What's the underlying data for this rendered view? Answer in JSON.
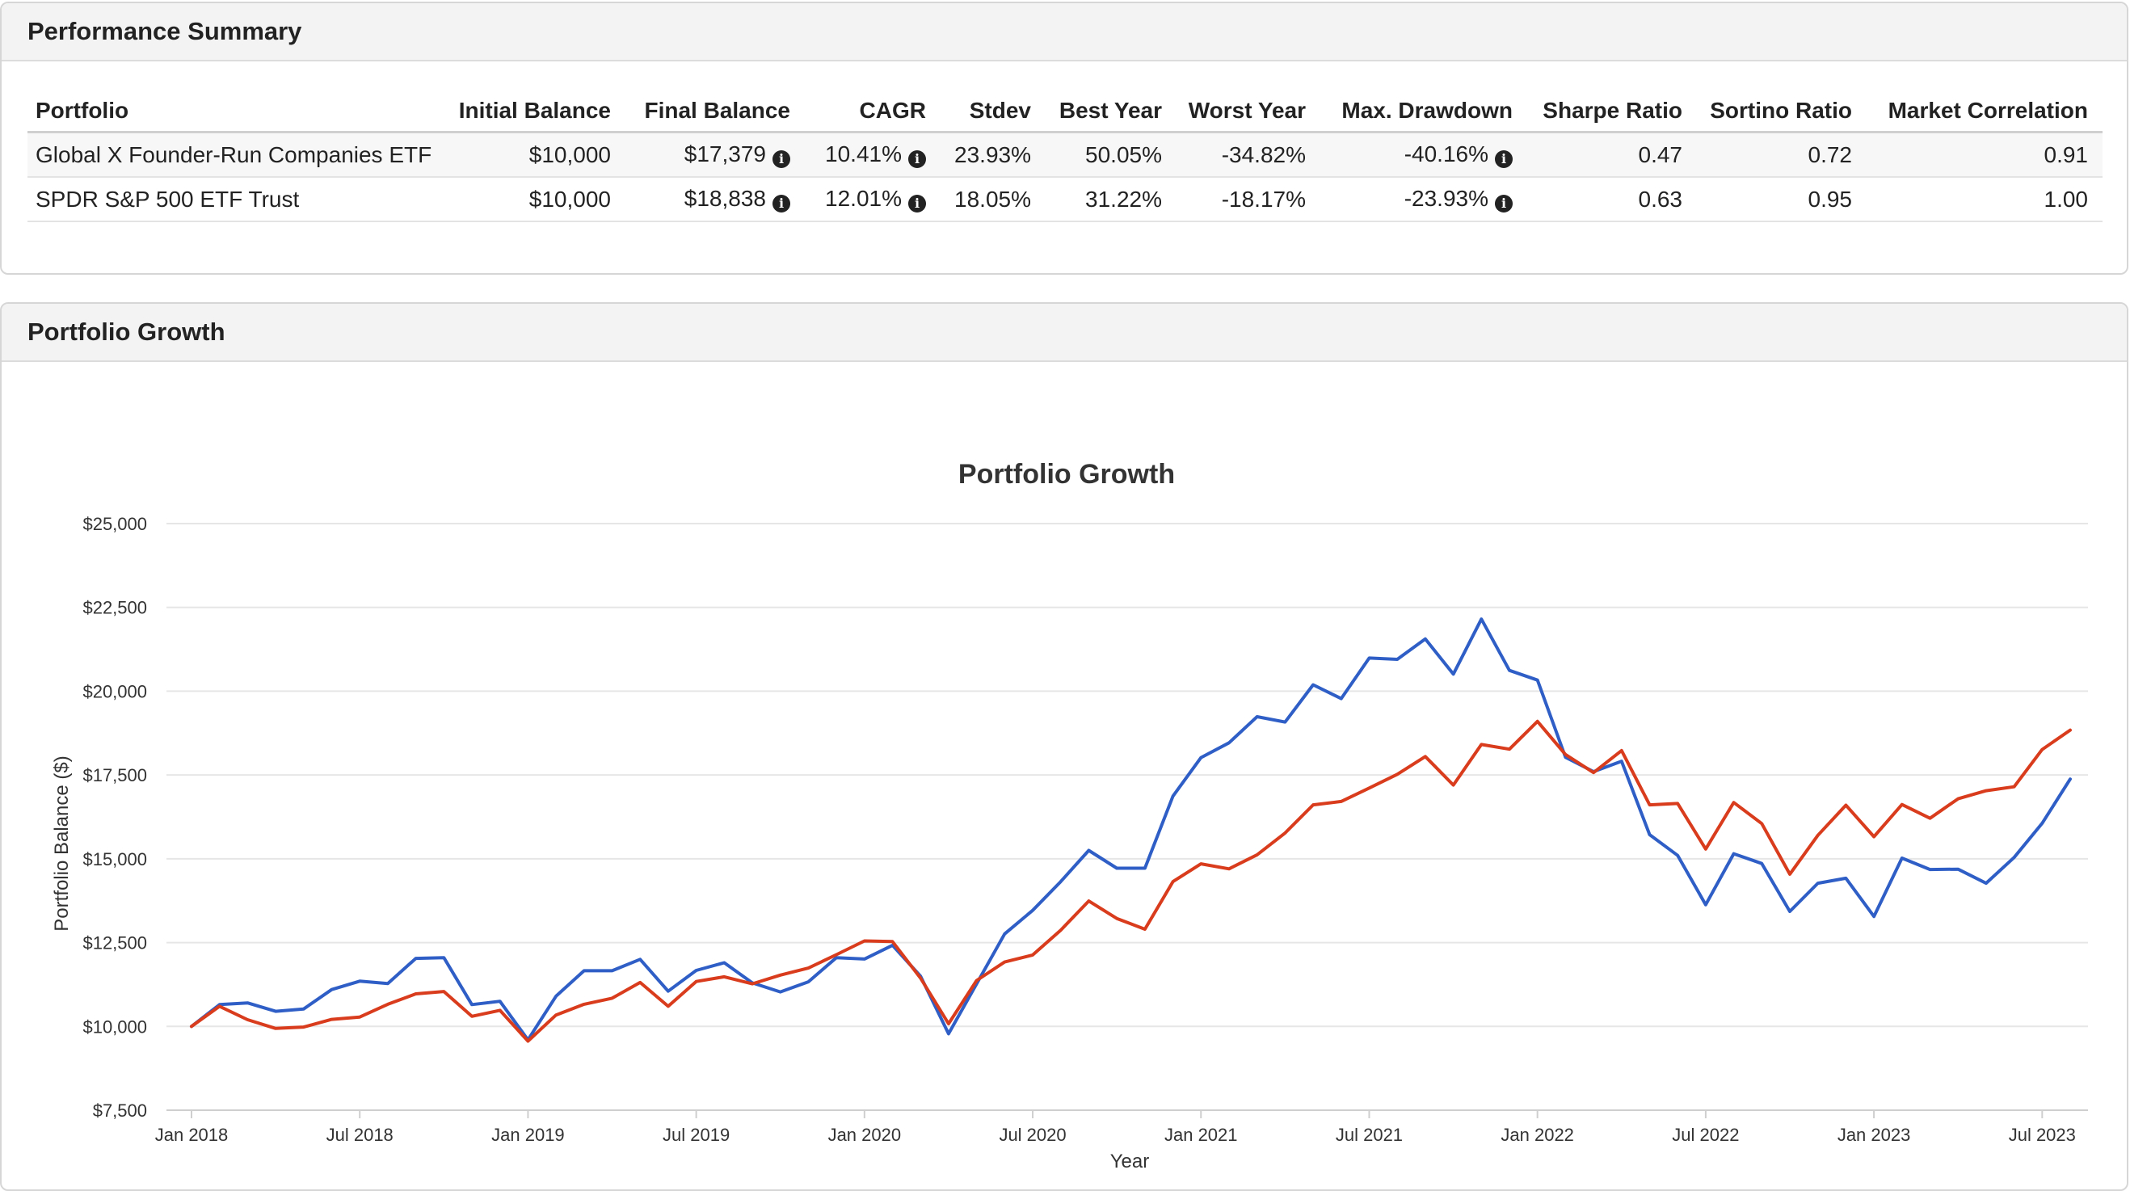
{
  "summary": {
    "title": "Performance Summary",
    "columns": [
      "Portfolio",
      "Initial Balance",
      "Final Balance",
      "CAGR",
      "Stdev",
      "Best Year",
      "Worst Year",
      "Max. Drawdown",
      "Sharpe Ratio",
      "Sortino Ratio",
      "Market Correlation"
    ],
    "rows": [
      {
        "portfolio": "Global X Founder-Run Companies ETF",
        "initial_balance": "$10,000",
        "final_balance": "$17,379",
        "cagr": "10.41%",
        "stdev": "23.93%",
        "best_year": "50.05%",
        "worst_year": "-34.82%",
        "max_drawdown": "-40.16%",
        "sharpe": "0.47",
        "sortino": "0.72",
        "market_correlation": "0.91"
      },
      {
        "portfolio": "SPDR S&P 500 ETF Trust",
        "initial_balance": "$10,000",
        "final_balance": "$18,838",
        "cagr": "12.01%",
        "stdev": "18.05%",
        "best_year": "31.22%",
        "worst_year": "-18.17%",
        "max_drawdown": "-23.93%",
        "sharpe": "0.63",
        "sortino": "0.95",
        "market_correlation": "1.00"
      }
    ],
    "info_icon": "info-circle-icon"
  },
  "growth": {
    "panel_title": "Portfolio Growth"
  },
  "chart_data": {
    "type": "line",
    "title": "Portfolio Growth",
    "xlabel": "Year",
    "ylabel": "Portfolio Balance ($)",
    "ylim": [
      7500,
      25000
    ],
    "yticks": [
      7500,
      10000,
      12500,
      15000,
      17500,
      20000,
      22500,
      25000
    ],
    "ytick_labels": [
      "$7,500",
      "$10,000",
      "$12,500",
      "$15,000",
      "$17,500",
      "$20,000",
      "$22,500",
      "$25,000"
    ],
    "x_start": "Jan 2018",
    "x_end": "Aug 2023",
    "xtick_indices": [
      0,
      6,
      12,
      18,
      24,
      30,
      36,
      42,
      48,
      54,
      60,
      66
    ],
    "xtick_labels": [
      "Jan 2018",
      "Jul 2018",
      "Jan 2019",
      "Jul 2019",
      "Jan 2020",
      "Jul 2020",
      "Jan 2021",
      "Jul 2021",
      "Jan 2022",
      "Jul 2022",
      "Jan 2023",
      "Jul 2023"
    ],
    "grid": true,
    "legend_position": "bottom",
    "series": [
      {
        "name": "Global X Founder-Run Companies ETF",
        "color": "#2f5fc6",
        "values": [
          10000,
          10650,
          10700,
          10450,
          10520,
          11100,
          11350,
          11280,
          12030,
          12050,
          10650,
          10750,
          9600,
          10900,
          11660,
          11660,
          12000,
          11050,
          11670,
          11900,
          11300,
          11030,
          11330,
          12050,
          12010,
          12420,
          11500,
          9780,
          11270,
          12760,
          13460,
          14320,
          15250,
          14720,
          14720,
          16870,
          18020,
          18460,
          19240,
          19080,
          20190,
          19780,
          20990,
          20950,
          21560,
          20510,
          22150,
          20620,
          20330,
          18030,
          17600,
          17910,
          15720,
          15100,
          13630,
          15150,
          14860,
          13430,
          14270,
          14420,
          13280,
          15020,
          14680,
          14690,
          14270,
          15040,
          16060,
          17379
        ]
      },
      {
        "name": "SPDR S&P 500 ETF Trust",
        "color": "#d93c1c",
        "values": [
          10000,
          10600,
          10200,
          9940,
          9980,
          10210,
          10280,
          10660,
          10970,
          11040,
          10300,
          10480,
          9560,
          10340,
          10660,
          10840,
          11310,
          10600,
          11340,
          11480,
          11270,
          11530,
          11740,
          12140,
          12550,
          12530,
          11440,
          10080,
          11370,
          11920,
          12130,
          12870,
          13740,
          13220,
          12900,
          14320,
          14850,
          14700,
          15120,
          15770,
          16610,
          16710,
          17110,
          17520,
          18050,
          17200,
          18410,
          18270,
          19100,
          18110,
          17570,
          18230,
          16610,
          16650,
          15290,
          16680,
          16050,
          14540,
          15700,
          16600,
          15660,
          16620,
          16210,
          16790,
          17030,
          17150,
          18260,
          18838
        ]
      }
    ]
  }
}
